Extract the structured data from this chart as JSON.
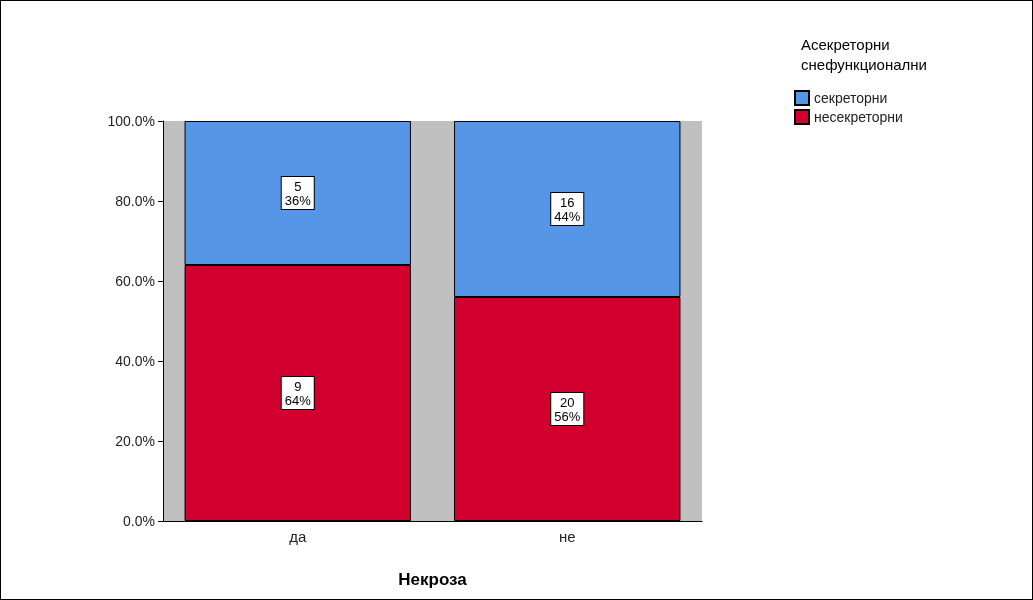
{
  "chart_data": {
    "type": "bar",
    "stacked": true,
    "xlabel": "Некроза",
    "legend_title": "Асекреторни\nснефункционални",
    "categories": [
      "да",
      "не"
    ],
    "series": [
      {
        "name": "несекреторни",
        "color": "#d2002f",
        "values": [
          64,
          56
        ],
        "value_labels": [
          "9\n64%",
          "20\n56%"
        ]
      },
      {
        "name": "секреторни",
        "color": "#5596e6",
        "values": [
          36,
          44
        ],
        "value_labels": [
          "5\n36%",
          "16\n44%"
        ]
      }
    ],
    "ylim": [
      0,
      100
    ],
    "yticks": [
      {
        "value": 0,
        "label": "0.0%"
      },
      {
        "value": 20,
        "label": "20.0%"
      },
      {
        "value": 40,
        "label": "40.0%"
      },
      {
        "value": 60,
        "label": "60.0%"
      },
      {
        "value": 80,
        "label": "80.0%"
      },
      {
        "value": 100,
        "label": "100.0%"
      }
    ],
    "grid": false,
    "legend": "top right"
  }
}
